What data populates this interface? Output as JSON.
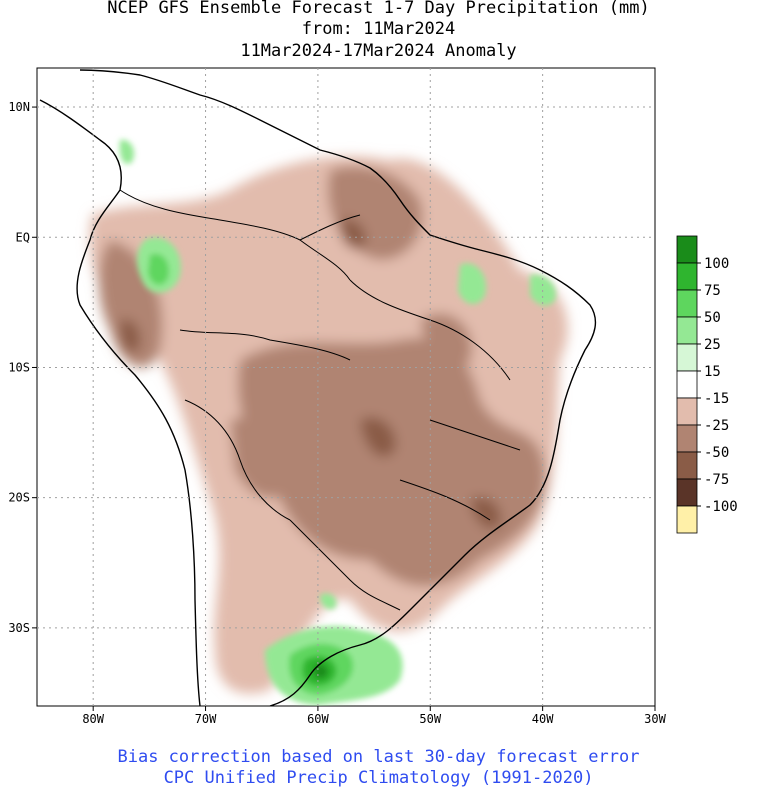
{
  "title": {
    "line1": "NCEP GFS Ensemble Forecast 1-7 Day Precipitation (mm)",
    "line2": "from: 11Mar2024",
    "line3": "11Mar2024-17Mar2024 Anomaly"
  },
  "footer": {
    "line1": "Bias correction based on last 30-day forecast error",
    "line2": "CPC Unified Precip Climatology (1991-2020)"
  },
  "map": {
    "lon_range": [
      -85,
      -30
    ],
    "lat_range": [
      -36,
      13
    ],
    "lon_ticks": [
      {
        "value": -80,
        "label": "80W"
      },
      {
        "value": -70,
        "label": "70W"
      },
      {
        "value": -60,
        "label": "60W"
      },
      {
        "value": -50,
        "label": "50W"
      },
      {
        "value": -40,
        "label": "40W"
      },
      {
        "value": -30,
        "label": "30W"
      }
    ],
    "lat_ticks": [
      {
        "value": 10,
        "label": "10N"
      },
      {
        "value": 0,
        "label": "EQ"
      },
      {
        "value": -10,
        "label": "10S"
      },
      {
        "value": -20,
        "label": "20S"
      },
      {
        "value": -30,
        "label": "30S"
      }
    ],
    "grid": true
  },
  "legend": {
    "colors": [
      "#1a8c1a",
      "#2fb52f",
      "#5ed65e",
      "#94e894",
      "#d6f7d6",
      "#ffffff",
      "#e2bcad",
      "#b08472",
      "#8a5c47",
      "#5a3428",
      "#fff0a8"
    ],
    "labels": [
      "100",
      "75",
      "50",
      "25",
      "15",
      "-15",
      "-25",
      "-50",
      "-75",
      "-100"
    ]
  },
  "colors": {
    "land_outline": "#000000",
    "grid_line": "#a0a0a0",
    "footer_text": "#2f4cf0"
  }
}
